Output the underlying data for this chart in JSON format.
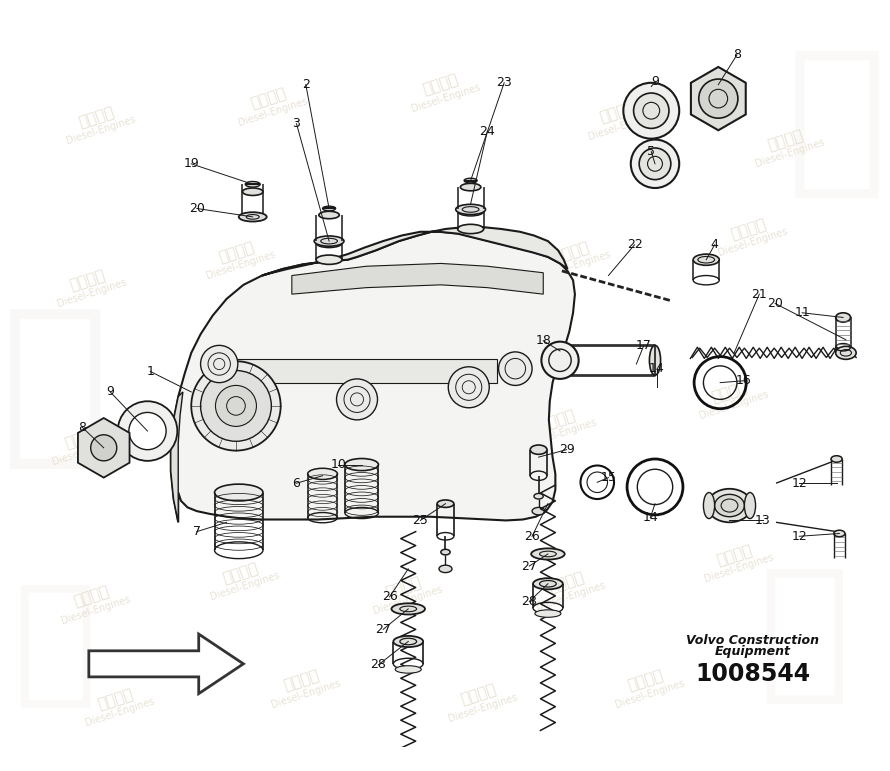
{
  "bg_color": "#ffffff",
  "drawing_color": "#1a1a1a",
  "label_color": "#111111",
  "wm_color1": "#c8b89a",
  "wm_color2": "#b8a888",
  "title_line1": "Volvo Construction",
  "title_line2": "Equipment",
  "part_number": "1008544",
  "fig_width": 8.9,
  "fig_height": 7.71,
  "dpi": 100
}
